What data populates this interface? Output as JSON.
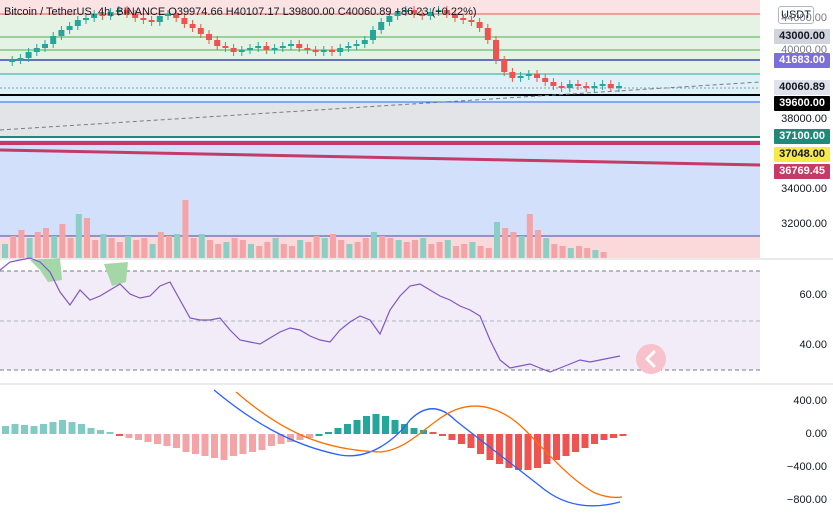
{
  "header": {
    "symbol": "Bitcoin / TetherUS, 4h, BINANCE",
    "ohlc": "O39974.66 H40107.17 L39800.00 C40060.89",
    "change": "+86.23 (+0.22%)"
  },
  "currency_button": "USDT",
  "price_axis": {
    "ticks": [
      "43000.00",
      "40000.00",
      "38000.00",
      "34000.00",
      "32000.00"
    ],
    "tags": [
      {
        "label": "41683.00",
        "bg": "#7b6fdc",
        "fg": "#ffffff"
      },
      {
        "label": "40060.89",
        "bg": "#dfe2ea",
        "fg": "#131722"
      },
      {
        "label": "39600.00",
        "bg": "#000000",
        "fg": "#ffffff"
      },
      {
        "label": "37100.00",
        "bg": "#1d8a7a",
        "fg": "#ffffff"
      },
      {
        "label": "37048.00",
        "bg": "#f7e94a",
        "fg": "#131722"
      },
      {
        "label": "36769.45",
        "bg": "#c53a66",
        "fg": "#ffffff"
      }
    ],
    "top_tag": {
      "label": "43000.00",
      "bg": "#d1d4dc",
      "fg": "#131722"
    },
    "partial_top_tick": "44000.00"
  },
  "rsi_axis": {
    "ticks": [
      "60.00",
      "40.00"
    ]
  },
  "macd_axis": {
    "ticks": [
      "400.00",
      "0.00",
      "−400.00",
      "−800.00"
    ]
  },
  "colors": {
    "up": "#26a69a",
    "down": "#ef5350",
    "rsi_line": "#7e57c2",
    "macd_line": "#2962ff",
    "signal_line": "#ff6d00",
    "accent": "#f7c2cc"
  },
  "icons": {
    "scroll_button": "chevron-left-icon"
  }
}
